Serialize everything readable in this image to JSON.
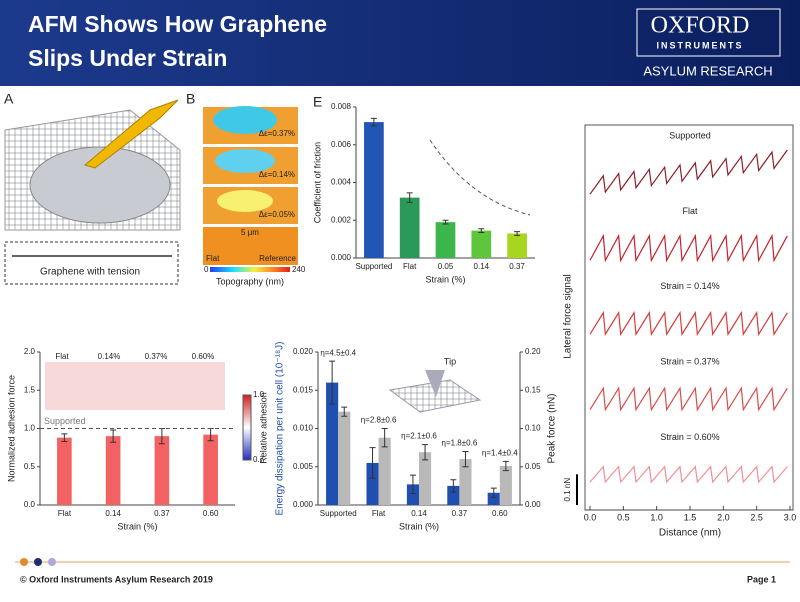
{
  "header": {
    "title": [
      "AFM Shows How Graphene",
      "Slips Under Strain"
    ]
  },
  "logo": {
    "name": "OXFORD",
    "sub": "INSTRUMENTS",
    "division": "ASYLUM RESEARCH"
  },
  "panel_a": {
    "label": "A",
    "caption": "Graphene with tension"
  },
  "panel_b": {
    "label": "B",
    "strains": [
      "Δε=0.37%",
      "Δε=0.14%",
      "Δε=0.05%"
    ],
    "scale": "5 μm",
    "left": "Flat",
    "right": "Reference",
    "cbar_min": "0",
    "cbar_max": "240",
    "cbar_label": "Topography (nm)"
  },
  "chart_data": [
    {
      "type": "bar",
      "panel": "E",
      "y_label": "Coefficient of friction",
      "x_label": "Strain (%)",
      "categories": [
        "Supported",
        "Flat",
        "0.05",
        "0.14",
        "0.37"
      ],
      "values": [
        0.0072,
        0.0032,
        0.0019,
        0.00145,
        0.0013
      ],
      "errors": [
        0.0002,
        0.00025,
        0.0001,
        0.0001,
        0.0001
      ],
      "colors": [
        "#2156b5",
        "#2b9a58",
        "#3bb64a",
        "#5ec63b",
        "#a6d61f"
      ],
      "ylim": [
        0,
        0.008
      ],
      "yticks": [
        {
          "value": 0,
          "label": "0.000"
        },
        {
          "value": 0.002,
          "label": "0.002"
        },
        {
          "value": 0.004,
          "label": "0.004"
        },
        {
          "value": 0.006,
          "label": "0.006"
        },
        {
          "value": 0.008,
          "label": "0.008"
        }
      ]
    },
    {
      "type": "bar",
      "y_label": "Normalized adhesion force",
      "x_label": "Strain (%)",
      "categories": [
        "Flat",
        "0.14",
        "0.37",
        "0.60"
      ],
      "values": [
        0.88,
        0.9,
        0.9,
        0.92
      ],
      "errors": [
        0.05,
        0.08,
        0.1,
        0.08
      ],
      "color": "#f26262",
      "ylim": [
        0,
        2
      ],
      "yticks": [
        {
          "value": 0,
          "label": "0.0"
        },
        0.5,
        {
          "value": 1,
          "label": "1.0"
        },
        1.5,
        {
          "value": 2,
          "label": "2.0"
        }
      ],
      "reference_line": {
        "value": 1,
        "label": "Supported"
      },
      "inset_labels": [
        "Flat",
        "0.14%",
        "0.37%",
        "0.60%"
      ],
      "colorbar": {
        "label": "Relative adhesion",
        "range": [
          0.7,
          1
        ],
        "ticks": [
          {
            "value": 1,
            "label": "1.0"
          },
          0.7
        ]
      }
    },
    {
      "type": "bar",
      "y_label": "Energy dissipation per unit cell (10⁻¹⁸J)",
      "y2_label": "Peak force (nN)",
      "x_label": "Strain (%)",
      "inset_label": "Tip",
      "categories": [
        "Supported",
        "Flat",
        "0.14",
        "0.37",
        "0.60"
      ],
      "series": [
        {
          "color": "#1f4fb0",
          "values": [
            0.016,
            0.0055,
            0.0027,
            0.0025,
            0.0016
          ],
          "errors": [
            0.0028,
            0.002,
            0.0012,
            0.0008,
            0.0006
          ]
        },
        {
          "color": "#b9b9b9",
          "axis": "y2",
          "values": [
            0.122,
            0.088,
            0.069,
            0.06,
            0.051
          ],
          "errors": [
            0.006,
            0.012,
            0.01,
            0.01,
            0.006
          ]
        }
      ],
      "annotations": [
        "η=4.5±0.4",
        "η=2.8±0.6",
        "η=2.1±0.6",
        "η=1.8±0.6",
        "η=1.4±0.4"
      ],
      "ylim": [
        0,
        0.02
      ],
      "yticks": [
        {
          "value": 0,
          "label": "0.000"
        },
        {
          "value": 0.005,
          "label": "0.005"
        },
        {
          "value": 0.01,
          "label": "0.010"
        },
        {
          "value": 0.015,
          "label": "0.015"
        },
        {
          "value": 0.02,
          "label": "0.020"
        }
      ],
      "y2lim": [
        0,
        0.2
      ],
      "y2ticks": [
        {
          "value": 0,
          "label": "0.00"
        },
        {
          "value": 0.05,
          "label": "0.05"
        },
        {
          "value": 0.1,
          "label": "0.10"
        },
        {
          "value": 0.15,
          "label": "0.15"
        },
        {
          "value": 0.2,
          "label": "0.20"
        }
      ]
    },
    {
      "type": "line",
      "y_label": "Lateral force signal",
      "x_label": "Distance (nm)",
      "scale_bar": {
        "value": 0.1,
        "label": "0.1 nN"
      },
      "x": [
        0,
        0.2,
        0.23,
        0.43,
        0.46,
        0.66,
        0.69,
        0.89,
        0.92,
        1.12,
        1.15,
        1.35,
        1.38,
        1.58,
        1.61,
        1.81,
        1.84,
        2.04,
        2.07,
        2.27,
        2.3,
        2.5,
        2.53,
        2.73,
        2.76,
        2.96
      ],
      "xlim": [
        0,
        3
      ],
      "xticks": [
        {
          "value": 0,
          "label": "0.0"
        },
        0.5,
        {
          "value": 1,
          "label": "1.0"
        },
        1.5,
        {
          "value": 2,
          "label": "2.0"
        },
        2.5,
        {
          "value": 3,
          "label": "3.0"
        }
      ],
      "ylim": [
        -0.1,
        0.1
      ],
      "series": [
        {
          "name": "Supported",
          "color": "#8a1f28",
          "values": [
            -0.07,
            -0.01,
            -0.063,
            -0.003,
            -0.056,
            0.004,
            -0.049,
            0.011,
            -0.042,
            0.018,
            -0.035,
            0.025,
            -0.028,
            0.032,
            -0.021,
            0.039,
            -0.014,
            0.046,
            -0.007,
            0.053,
            0,
            0.06,
            0.007,
            0.067,
            0.014,
            0.074
          ]
        },
        {
          "name": "Flat",
          "color": "#c8202a",
          "values": [
            -0.04,
            0.04,
            -0.04,
            0.04,
            -0.04,
            0.04,
            -0.04,
            0.04,
            -0.04,
            0.04,
            -0.04,
            0.04,
            -0.04,
            0.04,
            -0.04,
            0.04,
            -0.04,
            0.04,
            -0.04,
            0.04,
            -0.04,
            0.04,
            -0.04,
            0.04,
            -0.04,
            0.04
          ]
        },
        {
          "name": "Strain = 0.14%",
          "color": "#dc3a3a",
          "values": [
            -0.035,
            0.035,
            -0.035,
            0.035,
            -0.035,
            0.035,
            -0.035,
            0.035,
            -0.035,
            0.035,
            -0.035,
            0.035,
            -0.035,
            0.035,
            -0.035,
            0.035,
            -0.035,
            0.035,
            -0.035,
            0.035,
            -0.035,
            0.035,
            -0.035,
            0.035,
            -0.035,
            0.035
          ]
        },
        {
          "name": "Strain = 0.37%",
          "color": "#e04848",
          "values": [
            -0.035,
            0.035,
            -0.035,
            0.035,
            -0.035,
            0.035,
            -0.035,
            0.035,
            -0.035,
            0.035,
            -0.035,
            0.035,
            -0.035,
            0.035,
            -0.035,
            0.035,
            -0.035,
            0.035,
            -0.035,
            0.035,
            -0.035,
            0.035,
            -0.035,
            0.035,
            -0.035,
            0.035
          ]
        },
        {
          "name": "Strain = 0.60%",
          "color": "#f09090",
          "values": [
            -0.025,
            0.025,
            -0.025,
            0.025,
            -0.025,
            0.025,
            -0.025,
            0.025,
            -0.025,
            0.025,
            -0.025,
            0.025,
            -0.025,
            0.025,
            -0.025,
            0.025,
            -0.025,
            0.025,
            -0.025,
            0.025,
            -0.025,
            0.025,
            -0.025,
            0.025,
            -0.025,
            0.025
          ]
        }
      ]
    }
  ],
  "footer": {
    "copyright": "© Oxford Instruments Asylum Research 2019",
    "page": "Page 1"
  }
}
